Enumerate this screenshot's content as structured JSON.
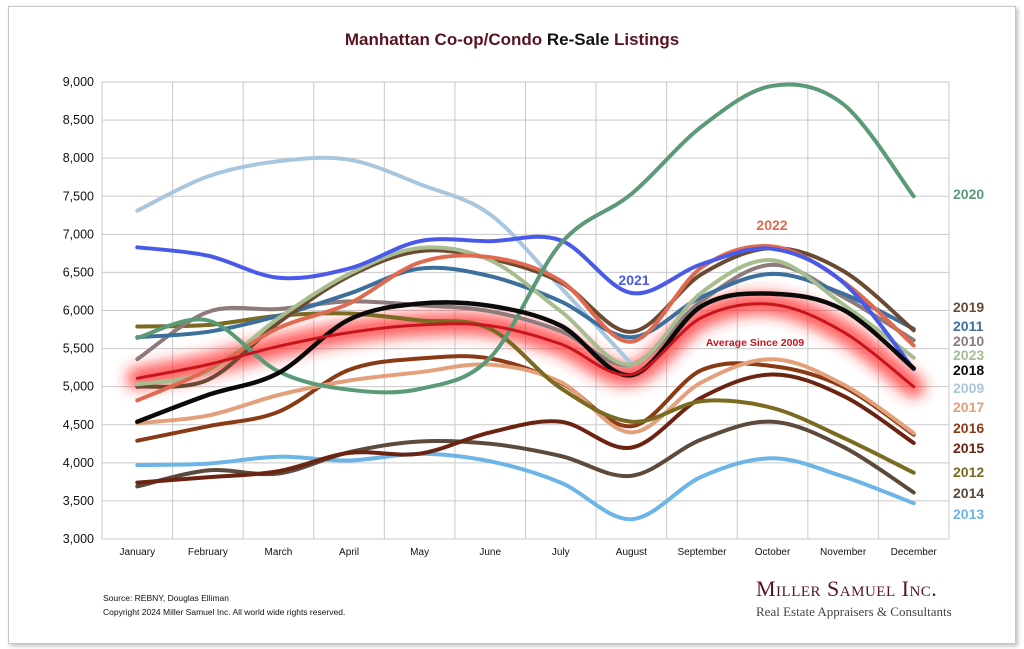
{
  "title": {
    "part1": "Manhattan Co-op/Condo ",
    "part2": "Re-Sale ",
    "part3": "Listings"
  },
  "footer": {
    "source": "Source: REBNY, Douglas Elliman",
    "copyright": "Copyright 2024 Miller Samuel Inc.  All world wide rights reserved.",
    "brand_name": "Miller Samuel Inc.",
    "brand_tagline": "Real Estate Appraisers & Consultants"
  },
  "chart_data": {
    "type": "line",
    "title": "Manhattan Co-op/Condo Re-Sale Listings",
    "xlabel": "",
    "ylabel": "",
    "categories": [
      "January",
      "February",
      "March",
      "April",
      "May",
      "June",
      "July",
      "August",
      "September",
      "October",
      "November",
      "December"
    ],
    "ylim": [
      3000,
      9000
    ],
    "yticks": [
      3000,
      3500,
      4000,
      4500,
      5000,
      5500,
      6000,
      6500,
      7000,
      7500,
      8000,
      8500,
      9000
    ],
    "ytick_labels": [
      "3,000",
      "3,500",
      "4,000",
      "4,500",
      "5,000",
      "5,500",
      "6,000",
      "6,500",
      "7,000",
      "7,500",
      "8,000",
      "8,500",
      "9,000"
    ],
    "grid": true,
    "legend": "right",
    "series": [
      {
        "name": "2009",
        "color": "#a9c6df",
        "values": [
          7310,
          7760,
          7960,
          7980,
          7660,
          7260,
          6300,
          5300,
          null,
          null,
          null,
          null
        ]
      },
      {
        "name": "2010",
        "color": "#8e7a7a",
        "values": [
          5360,
          5980,
          6020,
          6120,
          6070,
          5990,
          5730,
          5290,
          6130,
          6600,
          6180,
          5610
        ]
      },
      {
        "name": "2011",
        "color": "#3d6f9e",
        "values": [
          5650,
          5720,
          5930,
          6220,
          6550,
          6450,
          6120,
          5650,
          6180,
          6480,
          6220,
          5760
        ]
      },
      {
        "name": "2012",
        "color": "#7a6a22",
        "values": [
          5790,
          5810,
          5930,
          5960,
          5870,
          5760,
          4980,
          4540,
          4810,
          4720,
          4330,
          3870
        ]
      },
      {
        "name": "2013",
        "color": "#6cb5e6",
        "values": [
          3970,
          3990,
          4080,
          4030,
          4120,
          4020,
          3740,
          3260,
          3820,
          4060,
          3820,
          3470
        ]
      },
      {
        "name": "2014",
        "color": "#5c4a3c",
        "values": [
          3690,
          3900,
          3860,
          4140,
          4280,
          4250,
          4090,
          3830,
          4310,
          4540,
          4210,
          3610
        ]
      },
      {
        "name": "2015",
        "color": "#6b2412",
        "values": [
          3740,
          3810,
          3890,
          4130,
          4120,
          4400,
          4540,
          4200,
          4860,
          5160,
          4880,
          4260
        ]
      },
      {
        "name": "2016",
        "color": "#8a3a14",
        "values": [
          4290,
          4480,
          4670,
          5220,
          5370,
          5370,
          5050,
          4480,
          5220,
          5270,
          5000,
          4370
        ]
      },
      {
        "name": "2017",
        "color": "#e3a07a",
        "values": [
          4520,
          4620,
          4890,
          5080,
          5190,
          5290,
          5060,
          4400,
          5060,
          5360,
          5030,
          4390
        ]
      },
      {
        "name": "2018",
        "color": "#0a0a0a",
        "values": [
          4540,
          4890,
          5180,
          5880,
          6090,
          6060,
          5800,
          5150,
          6060,
          6220,
          6010,
          5240
        ]
      },
      {
        "name": "2019",
        "color": "#6a4a32",
        "values": [
          5000,
          5090,
          5840,
          6450,
          6780,
          6680,
          6370,
          5720,
          6480,
          6820,
          6520,
          5740
        ]
      },
      {
        "name": "2020",
        "color": "#5b9a76",
        "values": [
          5640,
          5870,
          5200,
          4960,
          4970,
          5380,
          6880,
          7530,
          8420,
          8950,
          8710,
          7500
        ]
      },
      {
        "name": "2021",
        "color": "#4a5ae8",
        "values": [
          6830,
          6720,
          6430,
          6550,
          6910,
          6910,
          6920,
          6230,
          6610,
          6810,
          6370,
          5230
        ]
      },
      {
        "name": "2022",
        "color": "#e06a50",
        "values": [
          4820,
          5220,
          5770,
          6090,
          6630,
          6700,
          6390,
          5590,
          6570,
          6840,
          6380,
          5540
        ]
      },
      {
        "name": "2023",
        "color": "#a7bd8f",
        "values": [
          5030,
          5200,
          5900,
          6480,
          6820,
          6660,
          5990,
          5290,
          6240,
          6660,
          6080,
          5380
        ]
      },
      {
        "name": "Average  Since 2009",
        "color": "#c8141e",
        "values": [
          5110,
          5290,
          5530,
          5710,
          5810,
          5800,
          5560,
          5160,
          5910,
          6080,
          5720,
          5000
        ]
      }
    ],
    "series_labels_right": [
      "2019",
      "2011",
      "2010",
      "2023",
      "2018",
      "2009",
      "2017",
      "2016",
      "2015",
      "2012",
      "2014",
      "2013"
    ],
    "inline_labels": [
      "2020",
      "2022",
      "2021",
      "Average  Since 2009"
    ]
  }
}
